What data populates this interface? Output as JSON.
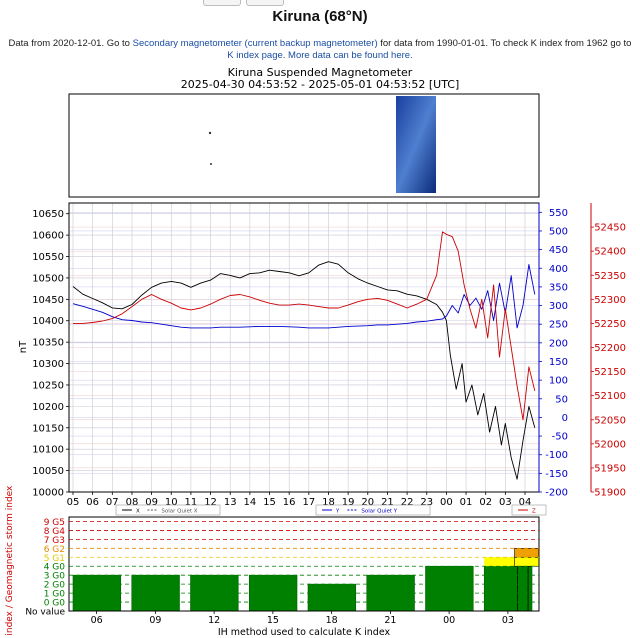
{
  "page": {
    "station_title": "Kiruna (68°N)",
    "info": {
      "text1": "Data from 2020-12-01. Go to ",
      "link1": "Secondary magnetometer (current backup magnetometer)",
      "text2": " for data from 1990-01-01. To check K index from 1962 go to ",
      "link2": "K index page",
      "text3": ". ",
      "link3": "More data can be found here."
    }
  },
  "chart_data": [
    {
      "type": "line",
      "title": "Kiruna Suspended Magnetometer",
      "subtitle": "2025-04-30 04:53:52 - 2025-05-01 04:53:52 [UTC]",
      "ylabel": "nT",
      "x_tick_labels": [
        "05",
        "06",
        "07",
        "08",
        "09",
        "10",
        "11",
        "12",
        "13",
        "14",
        "15",
        "16",
        "17",
        "18",
        "19",
        "20",
        "21",
        "22",
        "23",
        "00",
        "01",
        "02",
        "03",
        "04"
      ],
      "axes": [
        {
          "name": "left",
          "color": "#000000",
          "ylim": [
            10000,
            10675
          ],
          "ticks": [
            10000,
            10050,
            10100,
            10150,
            10200,
            10250,
            10300,
            10350,
            10400,
            10450,
            10500,
            10550,
            10600,
            10650
          ]
        },
        {
          "name": "right-blue",
          "color": "#0000cc",
          "ylim": [
            -200,
            575
          ],
          "ticks": [
            -200,
            -150,
            -100,
            -50,
            0,
            50,
            100,
            150,
            200,
            250,
            300,
            350,
            400,
            450,
            500,
            550
          ]
        },
        {
          "name": "right-red",
          "color": "#cc0000",
          "ylim": [
            51900,
            52500
          ],
          "ticks": [
            51900,
            51950,
            52000,
            52050,
            52100,
            52150,
            52200,
            52250,
            52300,
            52350,
            52400,
            52450
          ]
        }
      ],
      "legend": [
        {
          "label": "X",
          "color": "#000000",
          "dash": false
        },
        {
          "label": "Solar Quiet X",
          "color": "#555555",
          "dash": true
        },
        {
          "label": "Y",
          "color": "#0000cc",
          "dash": false
        },
        {
          "label": "Solar Quiet Y",
          "color": "#0000cc",
          "dash": true
        },
        {
          "label": "Z",
          "color": "#cc0000",
          "dash": false
        }
      ],
      "series": [
        {
          "name": "X",
          "axis": "left",
          "color": "#000000",
          "x": [
            0,
            0.5,
            1,
            1.5,
            2,
            2.5,
            3,
            3.5,
            4,
            4.5,
            5,
            5.5,
            6,
            6.5,
            7,
            7.5,
            8,
            8.5,
            9,
            9.5,
            10,
            10.5,
            11,
            11.5,
            12,
            12.5,
            13,
            13.5,
            14,
            14.5,
            15,
            15.5,
            16,
            16.5,
            17,
            17.5,
            18,
            18.5,
            18.8,
            19,
            19.2,
            19.5,
            19.8,
            20,
            20.3,
            20.6,
            20.9,
            21.2,
            21.5,
            21.8,
            22,
            22.3,
            22.6,
            22.9,
            23.2,
            23.5
          ],
          "y": [
            10480,
            10462,
            10452,
            10442,
            10430,
            10428,
            10438,
            10460,
            10478,
            10488,
            10492,
            10488,
            10478,
            10488,
            10495,
            10510,
            10506,
            10500,
            10510,
            10512,
            10518,
            10515,
            10512,
            10505,
            10512,
            10530,
            10538,
            10532,
            10512,
            10498,
            10488,
            10480,
            10472,
            10470,
            10462,
            10458,
            10450,
            10438,
            10420,
            10400,
            10320,
            10240,
            10300,
            10210,
            10250,
            10180,
            10230,
            10140,
            10200,
            10110,
            10160,
            10080,
            10030,
            10120,
            10200,
            10150
          ]
        },
        {
          "name": "Y",
          "axis": "right-blue",
          "color": "#0000cc",
          "x": [
            0,
            0.5,
            1,
            1.5,
            2,
            2.5,
            3,
            3.5,
            4,
            4.5,
            5,
            5.5,
            6,
            6.5,
            7,
            7.5,
            8,
            8.5,
            9,
            9.5,
            10,
            10.5,
            11,
            11.5,
            12,
            12.5,
            13,
            13.5,
            14,
            14.5,
            15,
            15.5,
            16,
            16.5,
            17,
            17.5,
            18,
            18.5,
            18.8,
            19,
            19.3,
            19.6,
            19.9,
            20.2,
            20.5,
            20.8,
            21.1,
            21.4,
            21.7,
            22,
            22.3,
            22.6,
            22.9,
            23.2,
            23.5
          ],
          "y": [
            305,
            298,
            290,
            282,
            270,
            262,
            260,
            256,
            254,
            250,
            246,
            242,
            240,
            240,
            240,
            242,
            242,
            242,
            243,
            244,
            244,
            244,
            243,
            242,
            240,
            240,
            240,
            242,
            244,
            245,
            246,
            248,
            248,
            250,
            252,
            256,
            258,
            262,
            264,
            272,
            300,
            280,
            330,
            300,
            320,
            290,
            340,
            260,
            360,
            280,
            380,
            240,
            300,
            410,
            330
          ]
        },
        {
          "name": "Z",
          "axis": "right-red",
          "color": "#cc0000",
          "x": [
            0,
            0.5,
            1,
            1.5,
            2,
            2.5,
            3,
            3.5,
            4,
            4.5,
            5,
            5.5,
            6,
            6.5,
            7,
            7.5,
            8,
            8.5,
            9,
            9.5,
            10,
            10.5,
            11,
            11.5,
            12,
            12.5,
            13,
            13.5,
            14,
            14.5,
            15,
            15.5,
            16,
            16.5,
            17,
            17.5,
            18,
            18.5,
            18.8,
            19,
            19.3,
            19.6,
            19.9,
            20.2,
            20.5,
            20.8,
            21.1,
            21.4,
            21.7,
            22,
            22.3,
            22.6,
            22.9,
            23.2,
            23.5
          ],
          "y": [
            52250,
            52250,
            52252,
            52255,
            52260,
            52270,
            52285,
            52300,
            52310,
            52300,
            52292,
            52282,
            52278,
            52282,
            52290,
            52300,
            52308,
            52310,
            52305,
            52298,
            52292,
            52288,
            52288,
            52290,
            52288,
            52285,
            52282,
            52282,
            52288,
            52295,
            52300,
            52302,
            52298,
            52290,
            52282,
            52290,
            52300,
            52350,
            52440,
            52435,
            52430,
            52400,
            52330,
            52280,
            52240,
            52300,
            52220,
            52330,
            52180,
            52280,
            52200,
            52120,
            52050,
            52160,
            52110
          ]
        }
      ]
    },
    {
      "type": "bar",
      "ylabel": "K index / Geomagnetic storm index",
      "xlabel": "IH method used to calculate K index",
      "x_tick_labels": [
        "06",
        "09",
        "12",
        "15",
        "18",
        "21",
        "00",
        "03"
      ],
      "level_labels": [
        "No value",
        "0 G0",
        "1 G0",
        "2 G0",
        "3 G0",
        "4 G0",
        "5 G1",
        "6 G2",
        "7 G3",
        "8 G4",
        "9 G5"
      ],
      "categories": [
        "06",
        "09",
        "12",
        "15",
        "18",
        "21",
        "00",
        "03"
      ],
      "values": [
        3,
        3,
        3,
        3,
        2,
        3,
        4,
        5
      ]
    }
  ]
}
